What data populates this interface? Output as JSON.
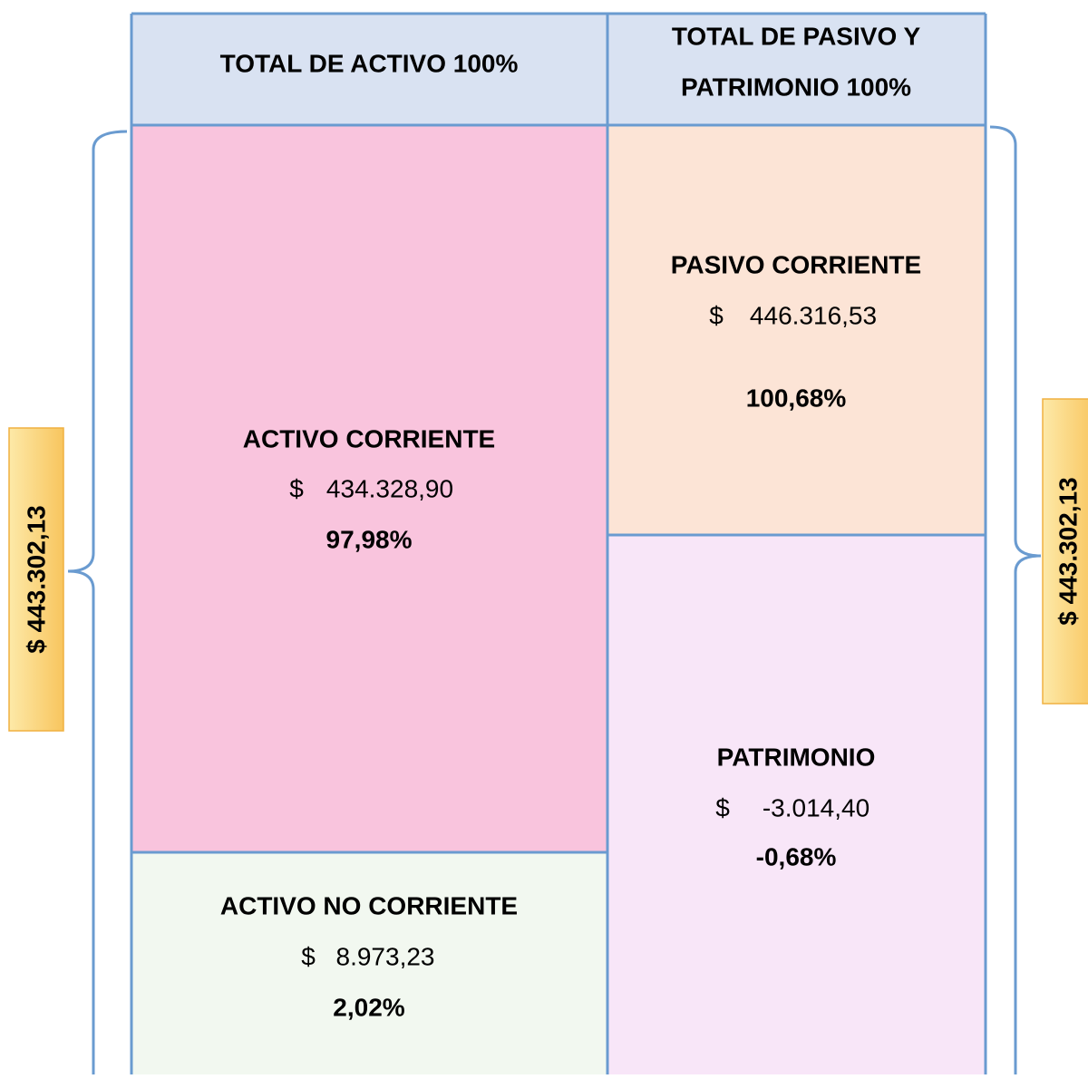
{
  "header": {
    "assets": "TOTAL DE ACTIVO 100%",
    "liabilities_lines": [
      "TOTAL DE PASIVO Y",
      "PATRIMONIO 100%"
    ]
  },
  "boxes": {
    "activo_corriente": {
      "title": "ACTIVO CORRIENTE",
      "currency": "$",
      "amount": "434.328,90",
      "percent": "97,98%"
    },
    "activo_no_corriente": {
      "title": "ACTIVO NO CORRIENTE",
      "currency": "$",
      "amount": "8.973,23",
      "percent": "2,02%"
    },
    "pasivo_corriente": {
      "title": "PASIVO CORRIENTE",
      "currency": "$",
      "amount": "446.316,53",
      "percent": "100,68%"
    },
    "patrimonio": {
      "title": "PATRIMONIO",
      "currency": "$",
      "amount": "-3.014,40",
      "percent": "-0,68%"
    }
  },
  "side_totals": {
    "left": "$ 443.302,13",
    "right": "$ 443.302,13"
  }
}
